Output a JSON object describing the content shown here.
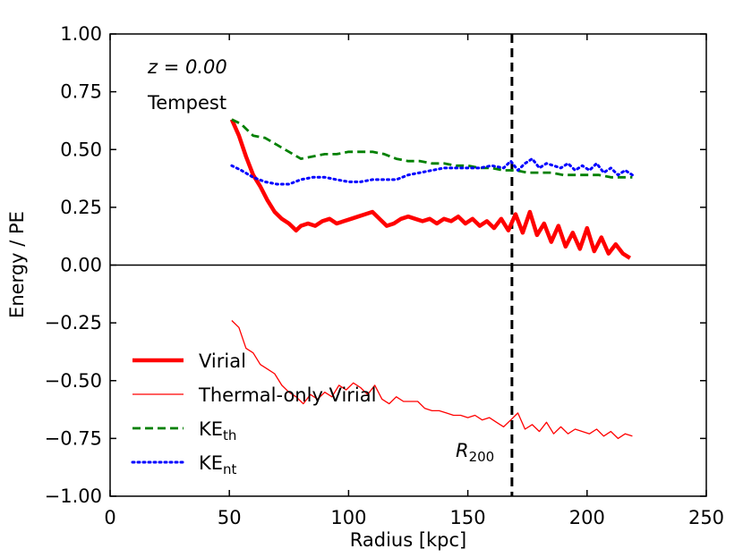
{
  "chart_data": {
    "type": "line",
    "title": "",
    "xlabel": "Radius [kpc]",
    "ylabel": "Energy / PE",
    "xlim": [
      0,
      250
    ],
    "ylim": [
      -1.0,
      1.0
    ],
    "x_ticks": [
      0,
      50,
      100,
      150,
      200,
      250
    ],
    "x_tick_labels": [
      "0",
      "50",
      "100",
      "150",
      "200",
      "250"
    ],
    "y_ticks": [
      -1.0,
      -0.75,
      -0.5,
      -0.25,
      0.0,
      0.25,
      0.5,
      0.75,
      1.0
    ],
    "y_tick_labels": [
      "−1.00",
      "−0.75",
      "−0.50",
      "−0.25",
      "0.00",
      "0.25",
      "0.50",
      "0.75",
      "1.00"
    ],
    "grid": false,
    "legend_position": "lower-left",
    "annotations": {
      "redshift_label": "z = 0.00",
      "halo_name": "Tempest",
      "r200_label": "R200",
      "r200_value": 168.5
    },
    "reference_lines": [
      {
        "name": "zero-line",
        "orientation": "horizontal",
        "value": 0.0,
        "color": "#000000",
        "style": "solid"
      },
      {
        "name": "r200-line",
        "orientation": "vertical",
        "value": 168.5,
        "color": "#000000",
        "style": "dashed"
      }
    ],
    "series": [
      {
        "name": "Virial",
        "color": "#ff0000",
        "style": "thick-solid",
        "x": [
          51,
          54,
          57,
          60,
          63,
          66,
          69,
          72,
          75,
          78,
          80,
          83,
          86,
          89,
          92,
          95,
          98,
          101,
          104,
          107,
          110,
          113,
          116,
          119,
          122,
          125,
          128,
          131,
          134,
          137,
          140,
          143,
          146,
          149,
          152,
          155,
          158,
          161,
          164,
          167,
          170,
          173,
          176,
          179,
          182,
          185,
          188,
          191,
          194,
          197,
          200,
          203,
          206,
          209,
          212,
          215,
          218
        ],
        "values": [
          0.63,
          0.56,
          0.47,
          0.39,
          0.34,
          0.28,
          0.23,
          0.2,
          0.18,
          0.15,
          0.17,
          0.18,
          0.17,
          0.19,
          0.2,
          0.18,
          0.19,
          0.2,
          0.21,
          0.22,
          0.23,
          0.2,
          0.17,
          0.18,
          0.2,
          0.21,
          0.2,
          0.19,
          0.2,
          0.18,
          0.2,
          0.19,
          0.21,
          0.18,
          0.2,
          0.17,
          0.19,
          0.16,
          0.2,
          0.15,
          0.22,
          0.14,
          0.23,
          0.13,
          0.18,
          0.1,
          0.17,
          0.08,
          0.14,
          0.07,
          0.16,
          0.06,
          0.12,
          0.05,
          0.09,
          0.05,
          0.03
        ]
      },
      {
        "name": "Thermal-only Virial",
        "color": "#ff0000",
        "style": "thin-solid",
        "x": [
          51,
          54,
          57,
          60,
          63,
          66,
          69,
          72,
          75,
          78,
          81,
          84,
          87,
          90,
          93,
          96,
          99,
          102,
          105,
          108,
          111,
          114,
          117,
          120,
          123,
          126,
          129,
          132,
          135,
          138,
          141,
          144,
          147,
          150,
          153,
          156,
          159,
          162,
          165,
          168,
          171,
          174,
          177,
          180,
          183,
          186,
          189,
          192,
          195,
          198,
          201,
          204,
          207,
          210,
          213,
          216,
          219
        ],
        "values": [
          -0.24,
          -0.27,
          -0.36,
          -0.38,
          -0.43,
          -0.45,
          -0.47,
          -0.52,
          -0.55,
          -0.57,
          -0.6,
          -0.56,
          -0.58,
          -0.55,
          -0.57,
          -0.52,
          -0.54,
          -0.51,
          -0.53,
          -0.56,
          -0.52,
          -0.58,
          -0.6,
          -0.57,
          -0.59,
          -0.59,
          -0.59,
          -0.62,
          -0.63,
          -0.63,
          -0.64,
          -0.65,
          -0.65,
          -0.66,
          -0.65,
          -0.67,
          -0.66,
          -0.68,
          -0.7,
          -0.67,
          -0.64,
          -0.71,
          -0.69,
          -0.72,
          -0.68,
          -0.73,
          -0.7,
          -0.73,
          -0.71,
          -0.72,
          -0.73,
          -0.71,
          -0.74,
          -0.72,
          -0.75,
          -0.73,
          -0.74
        ]
      },
      {
        "name": "KE_th",
        "color": "#008000",
        "style": "dashed",
        "x": [
          51,
          55,
          60,
          65,
          70,
          75,
          80,
          85,
          90,
          95,
          100,
          105,
          110,
          115,
          120,
          125,
          130,
          135,
          140,
          145,
          150,
          155,
          160,
          165,
          170,
          175,
          180,
          185,
          190,
          195,
          200,
          205,
          210,
          215,
          219
        ],
        "values": [
          0.63,
          0.61,
          0.56,
          0.55,
          0.52,
          0.49,
          0.46,
          0.47,
          0.48,
          0.48,
          0.49,
          0.49,
          0.49,
          0.48,
          0.46,
          0.45,
          0.45,
          0.44,
          0.44,
          0.43,
          0.43,
          0.42,
          0.42,
          0.41,
          0.41,
          0.4,
          0.4,
          0.4,
          0.39,
          0.39,
          0.39,
          0.39,
          0.38,
          0.38,
          0.38
        ]
      },
      {
        "name": "KE_nt",
        "color": "#0000ff",
        "style": "dotted",
        "x": [
          51,
          55,
          60,
          65,
          70,
          75,
          80,
          85,
          90,
          95,
          100,
          105,
          110,
          115,
          120,
          125,
          130,
          135,
          140,
          145,
          150,
          155,
          160,
          165,
          168,
          171,
          174,
          177,
          180,
          183,
          186,
          189,
          192,
          195,
          198,
          201,
          204,
          207,
          210,
          213,
          216,
          219
        ],
        "values": [
          0.43,
          0.41,
          0.38,
          0.36,
          0.35,
          0.35,
          0.37,
          0.38,
          0.38,
          0.37,
          0.36,
          0.36,
          0.37,
          0.37,
          0.37,
          0.39,
          0.4,
          0.41,
          0.42,
          0.42,
          0.42,
          0.42,
          0.43,
          0.42,
          0.45,
          0.41,
          0.44,
          0.46,
          0.42,
          0.44,
          0.43,
          0.42,
          0.44,
          0.41,
          0.43,
          0.41,
          0.44,
          0.4,
          0.42,
          0.39,
          0.41,
          0.39
        ]
      }
    ],
    "legend": [
      {
        "label": "Virial",
        "sub": "",
        "series": 0
      },
      {
        "label": "Thermal-only Virial",
        "sub": "",
        "series": 1
      },
      {
        "label": "KE",
        "sub": "th",
        "series": 2
      },
      {
        "label": "KE",
        "sub": "nt",
        "series": 3
      }
    ]
  }
}
